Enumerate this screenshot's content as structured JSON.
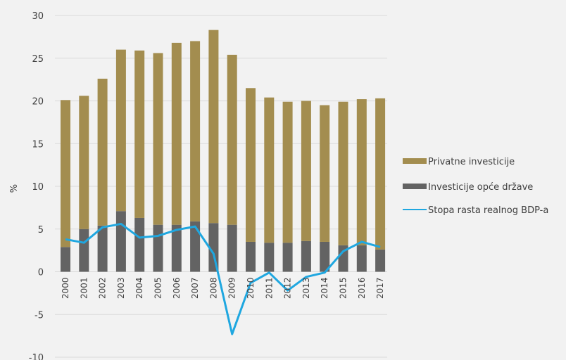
{
  "chart_data": {
    "type": "bar",
    "stacked": true,
    "categories": [
      "2000",
      "2001",
      "2002",
      "2003",
      "2004",
      "2005",
      "2006",
      "2007",
      "2008",
      "2009",
      "2010",
      "2011",
      "2012",
      "2013",
      "2014",
      "2015",
      "2016",
      "2017"
    ],
    "series": [
      {
        "name": "Investicije opće države",
        "kind": "bar",
        "color": "#636363",
        "values": [
          2.9,
          5.0,
          5.4,
          7.1,
          6.3,
          5.5,
          5.5,
          5.9,
          5.7,
          5.5,
          3.5,
          3.4,
          3.4,
          3.6,
          3.5,
          3.1,
          3.1,
          2.6
        ]
      },
      {
        "name": "Privatne investicije",
        "kind": "bar",
        "color": "#a38d4f",
        "values": [
          17.2,
          15.6,
          17.2,
          18.9,
          19.6,
          20.1,
          21.3,
          21.1,
          22.6,
          19.9,
          18.0,
          17.0,
          16.5,
          16.4,
          16.0,
          16.8,
          17.1,
          17.7
        ]
      },
      {
        "name": "Stopa rasta realnog BDP-a",
        "kind": "line",
        "color": "#1fa7e0",
        "values": [
          3.8,
          3.4,
          5.2,
          5.6,
          4.0,
          4.2,
          4.9,
          5.3,
          2.1,
          -7.3,
          -1.3,
          -0.1,
          -2.2,
          -0.6,
          -0.1,
          2.4,
          3.5,
          2.9
        ]
      }
    ],
    "legend_order": [
      "Privatne investicije",
      "Investicije opće države",
      "Stopa rasta realnog BDP-a"
    ],
    "legend_display": [
      "Privatne investicije",
      "Investicije opće države",
      "Stopa rasta realnog BDP-a"
    ],
    "yticks": [
      "30",
      "25",
      "20",
      "15",
      "10",
      "5",
      "0",
      "-5",
      "-10"
    ],
    "ylabel": "%",
    "xlabel": "",
    "title": "",
    "ylim": [
      -10,
      30
    ],
    "grid": true,
    "legend_position": "right"
  }
}
